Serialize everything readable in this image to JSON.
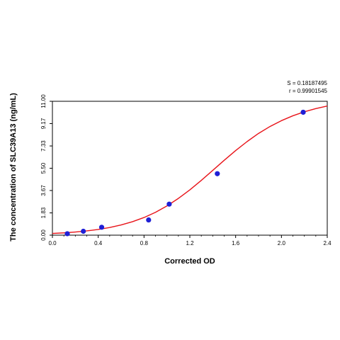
{
  "chart_data": {
    "type": "scatter",
    "xlabel": "Corrected OD",
    "ylabel": "The concentration of SLC39A13 (ng/mL)",
    "xlim": [
      0.0,
      2.4
    ],
    "ylim": [
      0.0,
      11.0
    ],
    "x_ticks": [
      "0.0",
      "0.4",
      "0.8",
      "1.2",
      "1.6",
      "2.0",
      "2.4"
    ],
    "y_ticks": [
      "0.00",
      "1.83",
      "3.67",
      "5.50",
      "7.33",
      "9.17",
      "11.00"
    ],
    "grid": false,
    "stats": {
      "s_label": "S = 0.18187495",
      "r_label": "r = 0.99901545"
    },
    "points": [
      {
        "x": 0.13,
        "y": 0.12
      },
      {
        "x": 0.27,
        "y": 0.32
      },
      {
        "x": 0.43,
        "y": 0.65
      },
      {
        "x": 0.84,
        "y": 1.25
      },
      {
        "x": 1.02,
        "y": 2.55
      },
      {
        "x": 1.44,
        "y": 5.05
      },
      {
        "x": 2.19,
        "y": 10.1
      }
    ],
    "fit_curve": {
      "color": "#e8141a",
      "x": [
        0.0,
        0.1,
        0.2,
        0.3,
        0.4,
        0.5,
        0.6,
        0.7,
        0.8,
        0.9,
        1.0,
        1.1,
        1.2,
        1.3,
        1.4,
        1.5,
        1.6,
        1.7,
        1.8,
        1.9,
        2.0,
        2.1,
        2.2,
        2.3,
        2.4
      ],
      "y": [
        0.14,
        0.19,
        0.26,
        0.35,
        0.47,
        0.63,
        0.84,
        1.11,
        1.45,
        1.88,
        2.4,
        3.02,
        3.72,
        4.5,
        5.32,
        6.15,
        6.95,
        7.69,
        8.36,
        8.93,
        9.41,
        9.81,
        10.14,
        10.4,
        10.61
      ]
    },
    "point_color": "#1f1fd6"
  }
}
